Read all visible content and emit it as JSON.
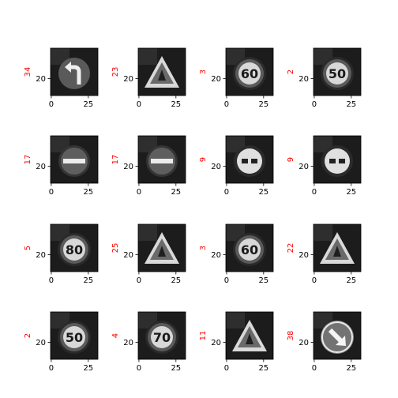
{
  "chart_data": [
    {
      "type": "image",
      "ylabel": "34",
      "xticks": [
        "0",
        "25"
      ],
      "yticks": [
        "20"
      ],
      "icon": "turn-left-arrow-sign-icon"
    },
    {
      "type": "image",
      "ylabel": "23",
      "xticks": [
        "0",
        "25"
      ],
      "yticks": [
        "20"
      ],
      "icon": "triangle-warning-sign-icon"
    },
    {
      "type": "image",
      "ylabel": "3",
      "xticks": [
        "0",
        "25"
      ],
      "yticks": [
        "20"
      ],
      "icon": "speed-limit-sign-icon",
      "sign_text": "60"
    },
    {
      "type": "image",
      "ylabel": "2",
      "xticks": [
        "0",
        "25"
      ],
      "yticks": [
        "20"
      ],
      "icon": "speed-limit-sign-icon",
      "sign_text": "50"
    },
    {
      "type": "image",
      "ylabel": "17",
      "xticks": [
        "0",
        "25"
      ],
      "yticks": [
        "20"
      ],
      "icon": "no-entry-sign-icon"
    },
    {
      "type": "image",
      "ylabel": "17",
      "xticks": [
        "0",
        "25"
      ],
      "yticks": [
        "20"
      ],
      "icon": "no-entry-sign-icon"
    },
    {
      "type": "image",
      "ylabel": "9",
      "xticks": [
        "0",
        "25"
      ],
      "yticks": [
        "20"
      ],
      "icon": "no-passing-sign-icon"
    },
    {
      "type": "image",
      "ylabel": "9",
      "xticks": [
        "0",
        "25"
      ],
      "yticks": [
        "20"
      ],
      "icon": "no-passing-sign-icon"
    },
    {
      "type": "image",
      "ylabel": "5",
      "xticks": [
        "0",
        "25"
      ],
      "yticks": [
        "20"
      ],
      "icon": "speed-limit-sign-icon",
      "sign_text": "80"
    },
    {
      "type": "image",
      "ylabel": "25",
      "xticks": [
        "0",
        "25"
      ],
      "yticks": [
        "20"
      ],
      "icon": "triangle-warning-sign-icon"
    },
    {
      "type": "image",
      "ylabel": "3",
      "xticks": [
        "0",
        "25"
      ],
      "yticks": [
        "20"
      ],
      "icon": "speed-limit-sign-icon",
      "sign_text": "60"
    },
    {
      "type": "image",
      "ylabel": "22",
      "xticks": [
        "0",
        "25"
      ],
      "yticks": [
        "20"
      ],
      "icon": "triangle-warning-sign-icon"
    },
    {
      "type": "image",
      "ylabel": "2",
      "xticks": [
        "0",
        "25"
      ],
      "yticks": [
        "20"
      ],
      "icon": "speed-limit-sign-icon",
      "sign_text": "50"
    },
    {
      "type": "image",
      "ylabel": "4",
      "xticks": [
        "0",
        "25"
      ],
      "yticks": [
        "20"
      ],
      "icon": "speed-limit-sign-icon",
      "sign_text": "70"
    },
    {
      "type": "image",
      "ylabel": "11",
      "xticks": [
        "0",
        "25"
      ],
      "yticks": [
        "20"
      ],
      "icon": "triangle-warning-sign-icon"
    },
    {
      "type": "image",
      "ylabel": "38",
      "xticks": [
        "0",
        "25"
      ],
      "yticks": [
        "20"
      ],
      "icon": "keep-right-sign-icon"
    }
  ],
  "colors": {
    "label": "#ff0000",
    "axis": "#000000"
  }
}
